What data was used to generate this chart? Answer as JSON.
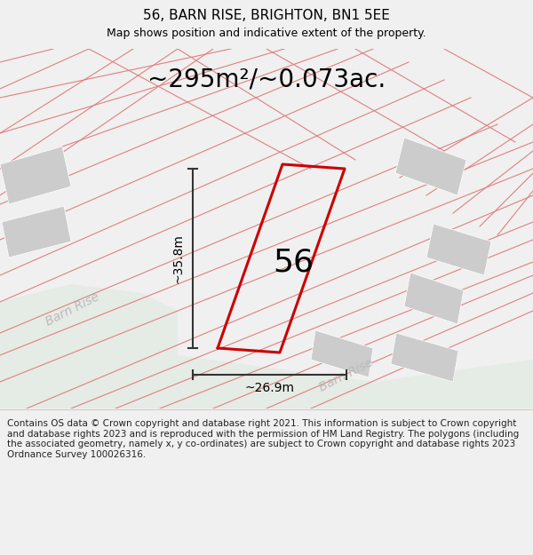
{
  "title": "56, BARN RISE, BRIGHTON, BN1 5EE",
  "subtitle": "Map shows position and indicative extent of the property.",
  "area_text": "~295m²/~0.073ac.",
  "width_label": "~26.9m",
  "height_label": "~35.8m",
  "house_number": "56",
  "footer": "Contains OS data © Crown copyright and database right 2021. This information is subject to Crown copyright and database rights 2023 and is reproduced with the permission of HM Land Registry. The polygons (including the associated geometry, namely x, y co-ordinates) are subject to Crown copyright and database rights 2023 Ordnance Survey 100026316.",
  "title_fontsize": 11,
  "subtitle_fontsize": 9,
  "area_fontsize": 20,
  "footer_fontsize": 7.5,
  "house_number_fontsize": 26,
  "dim_label_fontsize": 10,
  "road_label_fontsize": 10,
  "pink_line": "#e08080",
  "red_plot": "#cc0000",
  "gray_block": "#cccccc",
  "road_fill": "#e5ebe5",
  "map_bg": "#ffffff",
  "footer_bg": "#f0f0f0",
  "dim_color": "#333333",
  "road_label_color": "#bbbbbb"
}
